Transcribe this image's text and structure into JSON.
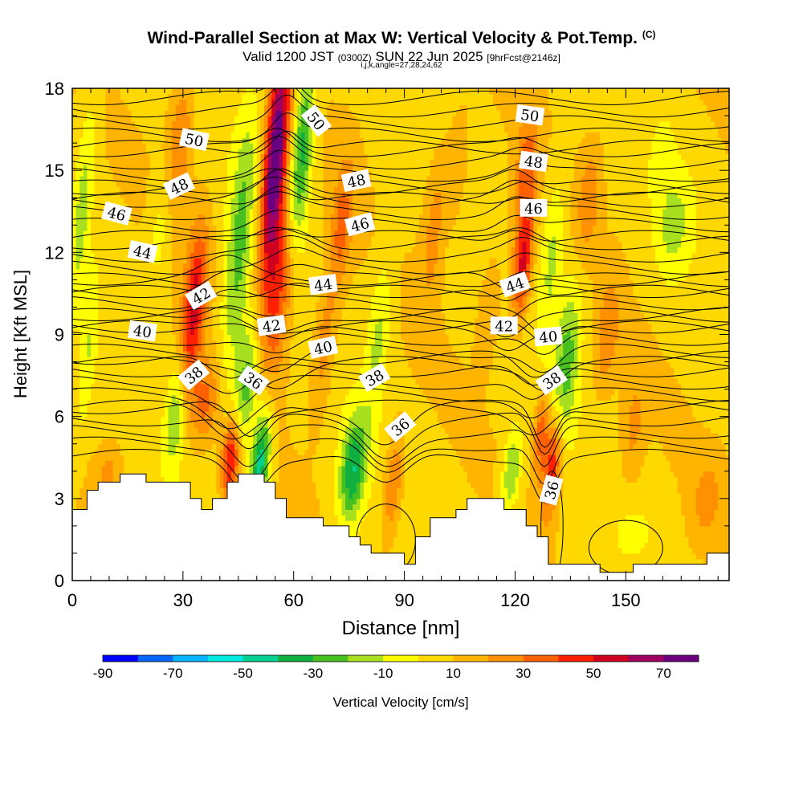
{
  "header": {
    "title": "Wind-Parallel Section at Max W: Vertical Velocity & Pot.Temp.",
    "copyright": "(C)",
    "valid_prefix": "Valid 1200 JST",
    "valid_utc": "(0300Z)",
    "valid_date": "SUN 22 Jun 2025",
    "forecast": "[9hrFcst@2146z]",
    "params": "i,j,k,angle=27,28,24,62"
  },
  "chart_data": {
    "type": "heatmap",
    "title": "Wind-Parallel Section at Max W: Vertical Velocity & Pot.Temp.",
    "xlabel": "Distance [nm]",
    "ylabel": "Height [Kft MSL]",
    "xlim": [
      0,
      178
    ],
    "ylim": [
      0,
      18
    ],
    "x_ticks": [
      "0",
      "30",
      "60",
      "90",
      "120",
      "150"
    ],
    "x_tick_values": [
      0,
      30,
      60,
      90,
      120,
      150
    ],
    "y_ticks": [
      "0",
      "3",
      "6",
      "9",
      "12",
      "15",
      "18"
    ],
    "y_tick_values": [
      0,
      3,
      6,
      9,
      12,
      15,
      18
    ],
    "colorbar": {
      "label": "Vertical Velocity [cm/s]",
      "tick_labels": [
        "-90",
        "-70",
        "-50",
        "-30",
        "-10",
        "10",
        "30",
        "50",
        "70"
      ],
      "tick_values": [
        -90,
        -70,
        -50,
        -30,
        -10,
        10,
        30,
        50,
        70
      ],
      "bounds": [
        -90,
        80
      ],
      "colors": [
        "#0000ff",
        "#0a64ff",
        "#00b4ff",
        "#00e8e0",
        "#00d090",
        "#10b040",
        "#48c020",
        "#a8e020",
        "#ffff00",
        "#ffd800",
        "#ffb400",
        "#ff9000",
        "#ff6000",
        "#ff2000",
        "#d00020",
        "#a00060",
        "#6a0080"
      ]
    },
    "terrain": [
      [
        0,
        2.6
      ],
      [
        4,
        2.6
      ],
      [
        4,
        3.3
      ],
      [
        7,
        3.3
      ],
      [
        7,
        3.6
      ],
      [
        13,
        3.6
      ],
      [
        13,
        3.9
      ],
      [
        20,
        3.9
      ],
      [
        20,
        3.6
      ],
      [
        32,
        3.6
      ],
      [
        32,
        3.0
      ],
      [
        35,
        3.0
      ],
      [
        35,
        2.6
      ],
      [
        38,
        2.6
      ],
      [
        38,
        3.0
      ],
      [
        42,
        3.0
      ],
      [
        42,
        3.6
      ],
      [
        45,
        3.6
      ],
      [
        45,
        3.9
      ],
      [
        52,
        3.9
      ],
      [
        52,
        3.6
      ],
      [
        55,
        3.6
      ],
      [
        55,
        3.0
      ],
      [
        58,
        3.0
      ],
      [
        58,
        2.3
      ],
      [
        68,
        2.3
      ],
      [
        68,
        2.0
      ],
      [
        75,
        2.0
      ],
      [
        75,
        1.6
      ],
      [
        78,
        1.6
      ],
      [
        78,
        1.3
      ],
      [
        81,
        1.3
      ],
      [
        81,
        1.0
      ],
      [
        90,
        1.0
      ],
      [
        90,
        0.6
      ],
      [
        93,
        0.6
      ],
      [
        93,
        1.6
      ],
      [
        97,
        1.6
      ],
      [
        97,
        2.3
      ],
      [
        104,
        2.3
      ],
      [
        104,
        2.6
      ],
      [
        107,
        2.6
      ],
      [
        107,
        3.0
      ],
      [
        117,
        3.0
      ],
      [
        117,
        2.6
      ],
      [
        123,
        2.6
      ],
      [
        123,
        2.0
      ],
      [
        126,
        2.0
      ],
      [
        126,
        1.6
      ],
      [
        129,
        1.6
      ],
      [
        129,
        0.6
      ],
      [
        143,
        0.6
      ],
      [
        143,
        0.3
      ],
      [
        152,
        0.3
      ],
      [
        152,
        0.6
      ],
      [
        172,
        0.6
      ],
      [
        172,
        1.0
      ],
      [
        178,
        1.0
      ]
    ],
    "w_features": [
      {
        "x": 55,
        "z": 15.5,
        "sx": 3,
        "sz": 4,
        "w": 75
      },
      {
        "x": 56,
        "z": 11,
        "sx": 4,
        "sz": 3.5,
        "w": 40
      },
      {
        "x": 51,
        "z": 4.3,
        "sx": 2.5,
        "sz": 2,
        "w": -55
      },
      {
        "x": 47,
        "z": 7,
        "sx": 3,
        "sz": 2.5,
        "w": -35
      },
      {
        "x": 62,
        "z": 15.5,
        "sx": 3,
        "sz": 3.5,
        "w": -45
      },
      {
        "x": 45,
        "z": 12,
        "sx": 3.5,
        "sz": 5,
        "w": -30
      },
      {
        "x": 33,
        "z": 10,
        "sx": 3,
        "sz": 3,
        "w": 45
      },
      {
        "x": 29,
        "z": 16,
        "sx": 3.5,
        "sz": 2.5,
        "w": 25
      },
      {
        "x": 43,
        "z": 4.5,
        "sx": 2.5,
        "sz": 1.5,
        "w": 50
      },
      {
        "x": 36,
        "z": 6.5,
        "sx": 4,
        "sz": 1.5,
        "w": 25
      },
      {
        "x": 76,
        "z": 4,
        "sx": 3.5,
        "sz": 2,
        "w": -45
      },
      {
        "x": 83,
        "z": 9,
        "sx": 3,
        "sz": 3,
        "w": -20
      },
      {
        "x": 87,
        "z": 3.5,
        "sx": 2.5,
        "sz": 2,
        "w": 25
      },
      {
        "x": 122,
        "z": 11.5,
        "sx": 2.5,
        "sz": 2,
        "w": 45
      },
      {
        "x": 123,
        "z": 15,
        "sx": 3,
        "sz": 2.5,
        "w": 25
      },
      {
        "x": 130,
        "z": 4.2,
        "sx": 2.5,
        "sz": 1.8,
        "w": 45
      },
      {
        "x": 127,
        "z": 5.5,
        "sx": 2,
        "sz": 1.5,
        "w": 30
      },
      {
        "x": 119,
        "z": 4,
        "sx": 2.5,
        "sz": 1.5,
        "w": -30
      },
      {
        "x": 134,
        "z": 8,
        "sx": 3.5,
        "sz": 3,
        "w": -30
      },
      {
        "x": 130,
        "z": 12,
        "sx": 3,
        "sz": 3,
        "w": -20
      },
      {
        "x": 163,
        "z": 13,
        "sx": 5,
        "sz": 2,
        "w": -18
      },
      {
        "x": 160,
        "z": 15.5,
        "sx": 3,
        "sz": 1.5,
        "w": -10
      },
      {
        "x": 3,
        "z": 14,
        "sx": 2.5,
        "sz": 4,
        "w": -20
      },
      {
        "x": 4,
        "z": 8,
        "sx": 2,
        "sz": 3,
        "w": -15
      },
      {
        "x": 24,
        "z": 13,
        "sx": 3,
        "sz": 2.5,
        "w": -15
      },
      {
        "x": 28,
        "z": 6,
        "sx": 2.5,
        "sz": 2,
        "w": -25
      },
      {
        "x": 98,
        "z": 13,
        "sx": 3,
        "sz": 3,
        "w": 18
      },
      {
        "x": 104,
        "z": 15,
        "sx": 3,
        "sz": 2,
        "w": 15
      },
      {
        "x": 140,
        "z": 14,
        "sx": 3,
        "sz": 2,
        "w": 20
      },
      {
        "x": 145,
        "z": 9,
        "sx": 3,
        "sz": 2,
        "w": 20
      },
      {
        "x": 152,
        "z": 5.5,
        "sx": 3,
        "sz": 2,
        "w": 15
      },
      {
        "x": 152,
        "z": 1.8,
        "sx": 4,
        "sz": 0.8,
        "w": -10
      },
      {
        "x": 10,
        "z": 4,
        "sx": 3,
        "sz": 1,
        "w": 15
      },
      {
        "x": 68,
        "z": 8.5,
        "sx": 3,
        "sz": 2.5,
        "w": 20
      },
      {
        "x": 73,
        "z": 13,
        "sx": 3,
        "sz": 2.5,
        "w": 25
      },
      {
        "x": 113,
        "z": 10,
        "sx": 3,
        "sz": 2,
        "w": 15
      },
      {
        "x": 172,
        "z": 3,
        "sx": 4,
        "sz": 1.5,
        "w": 15
      }
    ],
    "theta_contours": [
      {
        "value": 36,
        "base": 5.0,
        "warps": [
          {
            "x": 48,
            "a": -1.3,
            "s": 6
          },
          {
            "x": 85,
            "a": -1.2,
            "s": 8
          },
          {
            "x": 128,
            "a": -1.5,
            "s": 4
          }
        ]
      },
      {
        "value": 38,
        "base": 6.8,
        "warps": [
          {
            "x": 43,
            "a": -1.0,
            "s": 8
          },
          {
            "x": 125,
            "a": -0.8,
            "s": 6
          }
        ]
      },
      {
        "value": 40,
        "base": 8.4,
        "warps": [
          {
            "x": 56,
            "a": -0.7,
            "s": 8
          },
          {
            "x": 128,
            "a": -0.8,
            "s": 6
          }
        ]
      },
      {
        "value": 42,
        "base": 9.7,
        "warps": [
          {
            "x": 42,
            "a": 0.6,
            "s": 8
          },
          {
            "x": 118,
            "a": -0.6,
            "s": 6
          }
        ]
      },
      {
        "value": 44,
        "base": 11.0,
        "warps": [
          {
            "x": 60,
            "a": 0.5,
            "s": 8
          },
          {
            "x": 122,
            "a": 0.4,
            "s": 6
          }
        ]
      },
      {
        "value": 46,
        "base": 13.0,
        "warps": [
          {
            "x": 55,
            "a": 0.6,
            "s": 8
          },
          {
            "x": 120,
            "a": 0.5,
            "s": 6
          }
        ]
      },
      {
        "value": 48,
        "base": 14.4,
        "warps": [
          {
            "x": 56,
            "a": 0.7,
            "s": 6
          },
          {
            "x": 122,
            "a": 0.3,
            "s": 6
          }
        ]
      },
      {
        "value": 50,
        "base": 16.3,
        "warps": [
          {
            "x": 58,
            "a": 0.8,
            "s": 5
          }
        ]
      }
    ],
    "contour_labels": [
      {
        "text": "50",
        "x": 33,
        "z": 16.1,
        "angle": 12
      },
      {
        "text": "50",
        "x": 66,
        "z": 16.8,
        "angle": 52
      },
      {
        "text": "50",
        "x": 124,
        "z": 17.0,
        "angle": 8
      },
      {
        "text": "48",
        "x": 29,
        "z": 14.4,
        "angle": -25
      },
      {
        "text": "48",
        "x": 77,
        "z": 14.6,
        "angle": -12
      },
      {
        "text": "48",
        "x": 125,
        "z": 15.3,
        "angle": 8
      },
      {
        "text": "46",
        "x": 12,
        "z": 13.4,
        "angle": 15
      },
      {
        "text": "46",
        "x": 78,
        "z": 13.0,
        "angle": -15
      },
      {
        "text": "46",
        "x": 125,
        "z": 13.6,
        "angle": 0
      },
      {
        "text": "44",
        "x": 19,
        "z": 12.0,
        "angle": 12
      },
      {
        "text": "44",
        "x": 68,
        "z": 10.8,
        "angle": -8
      },
      {
        "text": "44",
        "x": 120,
        "z": 10.8,
        "angle": -20
      },
      {
        "text": "42",
        "x": 35,
        "z": 10.4,
        "angle": -30
      },
      {
        "text": "42",
        "x": 54,
        "z": 9.3,
        "angle": -8
      },
      {
        "text": "42",
        "x": 117,
        "z": 9.3,
        "angle": 0
      },
      {
        "text": "40",
        "x": 19,
        "z": 9.1,
        "angle": 8
      },
      {
        "text": "40",
        "x": 68,
        "z": 8.5,
        "angle": -12
      },
      {
        "text": "40",
        "x": 129,
        "z": 8.9,
        "angle": -5
      },
      {
        "text": "38",
        "x": 33,
        "z": 7.5,
        "angle": -40
      },
      {
        "text": "38",
        "x": 82,
        "z": 7.4,
        "angle": -30
      },
      {
        "text": "38",
        "x": 130,
        "z": 7.3,
        "angle": -35
      },
      {
        "text": "36",
        "x": 49,
        "z": 7.3,
        "angle": 35
      },
      {
        "text": "36",
        "x": 89,
        "z": 5.6,
        "angle": -40
      },
      {
        "text": "36",
        "x": 130,
        "z": 3.3,
        "angle": -75
      }
    ]
  }
}
